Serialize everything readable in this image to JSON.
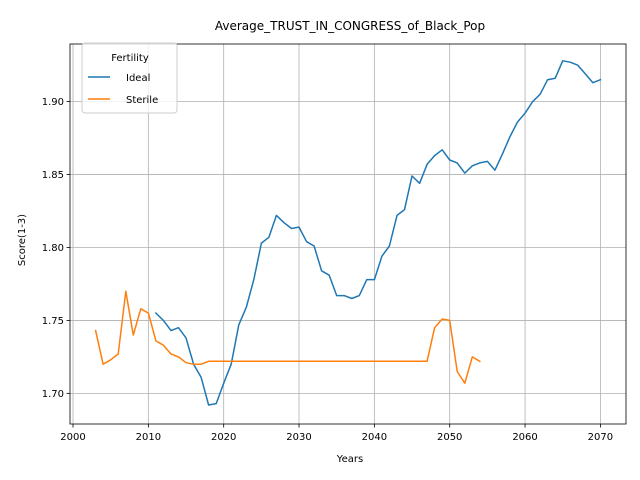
{
  "chart_data": {
    "type": "line",
    "title": "Average_TRUST_IN_CONGRESS_of_Black_Pop",
    "xlabel": "Years",
    "ylabel": "Score(1-3)",
    "xlim": [
      1999.6,
      2073.4
    ],
    "ylim": [
      1.679,
      1.9395
    ],
    "xticks": [
      2000,
      2010,
      2020,
      2030,
      2040,
      2050,
      2060,
      2070
    ],
    "yticks": [
      1.7,
      1.75,
      1.8,
      1.85,
      1.9
    ],
    "ytick_labels": [
      "1.70",
      "1.75",
      "1.80",
      "1.85",
      "1.90"
    ],
    "grid": true,
    "legend": {
      "title": "Fertility",
      "placement": "top-left"
    },
    "series": [
      {
        "name": "Ideal",
        "color": "#1f77b4",
        "x": [
          2011,
          2012,
          2013,
          2014,
          2015,
          2016,
          2017,
          2018,
          2019,
          2020,
          2021,
          2022,
          2023,
          2024,
          2025,
          2026,
          2027,
          2028,
          2029,
          2030,
          2031,
          2032,
          2033,
          2034,
          2035,
          2036,
          2037,
          2038,
          2039,
          2040,
          2041,
          2042,
          2043,
          2044,
          2045,
          2046,
          2047,
          2048,
          2049,
          2050,
          2051,
          2052,
          2053,
          2054,
          2055,
          2056,
          2057,
          2058,
          2059,
          2060,
          2061,
          2062,
          2063,
          2064,
          2065,
          2066,
          2067,
          2068,
          2069,
          2070
        ],
        "y": [
          1.755,
          1.75,
          1.743,
          1.745,
          1.738,
          1.72,
          1.711,
          1.692,
          1.693,
          1.707,
          1.72,
          1.747,
          1.759,
          1.778,
          1.803,
          1.807,
          1.822,
          1.817,
          1.813,
          1.814,
          1.804,
          1.801,
          1.784,
          1.781,
          1.767,
          1.767,
          1.765,
          1.767,
          1.778,
          1.778,
          1.794,
          1.801,
          1.822,
          1.826,
          1.849,
          1.844,
          1.857,
          1.863,
          1.867,
          1.86,
          1.858,
          1.851,
          1.856,
          1.858,
          1.859,
          1.853,
          1.864,
          1.876,
          1.886,
          1.892,
          1.9,
          1.905,
          1.915,
          1.916,
          1.928,
          1.927,
          1.925,
          1.919,
          1.913,
          1.915
        ]
      },
      {
        "name": "Sterile",
        "color": "#ff7f0e",
        "x": [
          2003,
          2004,
          2005,
          2006,
          2007,
          2008,
          2009,
          2010,
          2011,
          2012,
          2013,
          2014,
          2015,
          2016,
          2017,
          2018,
          2019,
          2020,
          2021,
          2022,
          2023,
          2024,
          2025,
          2026,
          2027,
          2028,
          2029,
          2030,
          2031,
          2032,
          2033,
          2034,
          2035,
          2036,
          2037,
          2038,
          2039,
          2040,
          2041,
          2042,
          2043,
          2044,
          2045,
          2046,
          2047,
          2048,
          2049,
          2050,
          2051,
          2052,
          2053,
          2054
        ],
        "y": [
          1.743,
          1.72,
          1.723,
          1.727,
          1.77,
          1.74,
          1.758,
          1.755,
          1.736,
          1.733,
          1.727,
          1.725,
          1.721,
          1.72,
          1.72,
          1.722,
          1.722,
          1.722,
          1.722,
          1.722,
          1.722,
          1.722,
          1.722,
          1.722,
          1.722,
          1.722,
          1.722,
          1.722,
          1.722,
          1.722,
          1.722,
          1.722,
          1.722,
          1.722,
          1.722,
          1.722,
          1.722,
          1.722,
          1.722,
          1.722,
          1.722,
          1.722,
          1.722,
          1.722,
          1.722,
          1.745,
          1.751,
          1.75,
          1.715,
          1.707,
          1.725,
          1.722
        ]
      }
    ]
  }
}
